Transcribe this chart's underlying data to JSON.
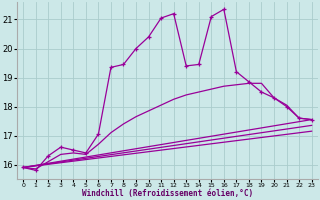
{
  "xlabel": "Windchill (Refroidissement éolien,°C)",
  "bg_color": "#cce8e8",
  "grid_color": "#aacccc",
  "line_color": "#990099",
  "xlim": [
    -0.5,
    23.5
  ],
  "ylim": [
    15.5,
    21.6
  ],
  "xticks": [
    0,
    1,
    2,
    3,
    4,
    5,
    6,
    7,
    8,
    9,
    10,
    11,
    12,
    13,
    14,
    15,
    16,
    17,
    18,
    19,
    20,
    21,
    22,
    23
  ],
  "yticks": [
    16,
    17,
    18,
    19,
    20,
    21
  ],
  "curve_main_x": [
    0,
    1,
    2,
    3,
    4,
    5,
    6,
    7,
    8,
    9,
    10,
    11,
    12,
    13,
    14,
    15,
    16,
    17,
    18,
    19,
    20,
    21,
    22,
    23
  ],
  "curve_main_y": [
    15.9,
    15.8,
    16.3,
    16.6,
    16.5,
    16.4,
    17.05,
    19.35,
    19.45,
    20.0,
    20.4,
    21.05,
    21.2,
    19.4,
    19.45,
    21.1,
    21.35,
    19.2,
    18.85,
    18.5,
    18.3,
    18.0,
    17.6,
    17.55
  ],
  "curve2_x": [
    0,
    1,
    2,
    3,
    4,
    5,
    6,
    7,
    8,
    9,
    10,
    11,
    12,
    13,
    14,
    15,
    16,
    17,
    18,
    19,
    20,
    21,
    22,
    23
  ],
  "curve2_y": [
    15.9,
    15.85,
    16.1,
    16.35,
    16.4,
    16.35,
    16.7,
    17.1,
    17.4,
    17.65,
    17.85,
    18.05,
    18.25,
    18.4,
    18.5,
    18.6,
    18.7,
    18.75,
    18.8,
    18.8,
    18.3,
    18.05,
    17.6,
    17.55
  ],
  "line1_x": [
    0,
    23
  ],
  "line1_y": [
    15.9,
    17.55
  ],
  "line2_x": [
    0,
    23
  ],
  "line2_y": [
    15.9,
    17.15
  ],
  "line3_x": [
    0,
    23
  ],
  "line3_y": [
    15.9,
    17.35
  ]
}
